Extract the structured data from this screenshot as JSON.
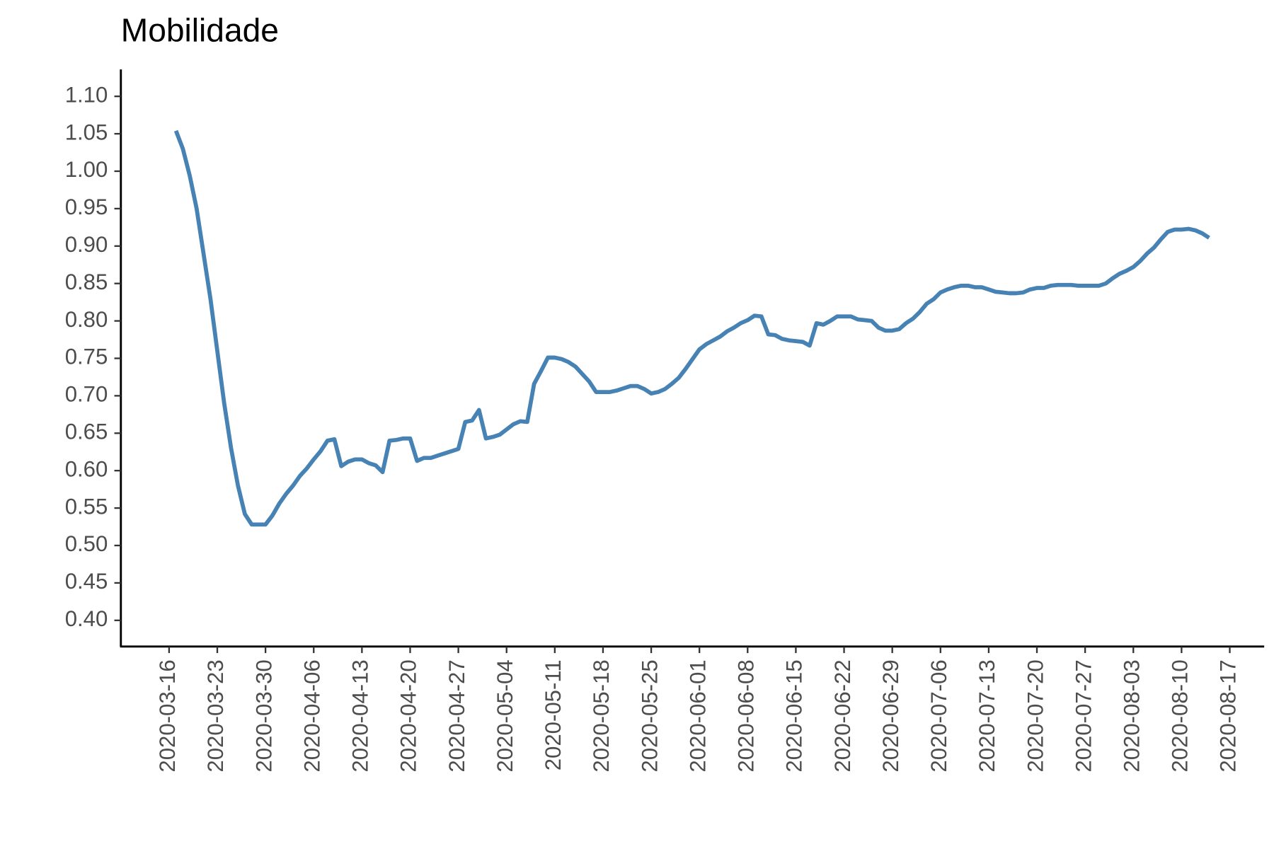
{
  "chart_data": {
    "type": "line",
    "title": "Mobilidade",
    "x": [
      "2020-03-17",
      "2020-03-18",
      "2020-03-19",
      "2020-03-20",
      "2020-03-21",
      "2020-03-22",
      "2020-03-23",
      "2020-03-24",
      "2020-03-25",
      "2020-03-26",
      "2020-03-27",
      "2020-03-28",
      "2020-03-29",
      "2020-03-30",
      "2020-03-31",
      "2020-04-01",
      "2020-04-02",
      "2020-04-03",
      "2020-04-04",
      "2020-04-05",
      "2020-04-06",
      "2020-04-07",
      "2020-04-08",
      "2020-04-09",
      "2020-04-10",
      "2020-04-11",
      "2020-04-12",
      "2020-04-13",
      "2020-04-14",
      "2020-04-15",
      "2020-04-16",
      "2020-04-17",
      "2020-04-18",
      "2020-04-19",
      "2020-04-20",
      "2020-04-21",
      "2020-04-22",
      "2020-04-23",
      "2020-04-24",
      "2020-04-25",
      "2020-04-26",
      "2020-04-27",
      "2020-04-28",
      "2020-04-29",
      "2020-04-30",
      "2020-05-01",
      "2020-05-02",
      "2020-05-03",
      "2020-05-04",
      "2020-05-05",
      "2020-05-06",
      "2020-05-07",
      "2020-05-08",
      "2020-05-09",
      "2020-05-10",
      "2020-05-11",
      "2020-05-12",
      "2020-05-13",
      "2020-05-14",
      "2020-05-15",
      "2020-05-16",
      "2020-05-17",
      "2020-05-18",
      "2020-05-19",
      "2020-05-20",
      "2020-05-21",
      "2020-05-22",
      "2020-05-23",
      "2020-05-24",
      "2020-05-25",
      "2020-05-26",
      "2020-05-27",
      "2020-05-28",
      "2020-05-29",
      "2020-05-30",
      "2020-05-31",
      "2020-06-01",
      "2020-06-02",
      "2020-06-03",
      "2020-06-04",
      "2020-06-05",
      "2020-06-06",
      "2020-06-07",
      "2020-06-08",
      "2020-06-09",
      "2020-06-10",
      "2020-06-11",
      "2020-06-12",
      "2020-06-13",
      "2020-06-14",
      "2020-06-15",
      "2020-06-16",
      "2020-06-17",
      "2020-06-18",
      "2020-06-19",
      "2020-06-20",
      "2020-06-21",
      "2020-06-22",
      "2020-06-23",
      "2020-06-24",
      "2020-06-25",
      "2020-06-26",
      "2020-06-27",
      "2020-06-28",
      "2020-06-29",
      "2020-06-30",
      "2020-07-01",
      "2020-07-02",
      "2020-07-03",
      "2020-07-04",
      "2020-07-05",
      "2020-07-06",
      "2020-07-07",
      "2020-07-08",
      "2020-07-09",
      "2020-07-10",
      "2020-07-11",
      "2020-07-12",
      "2020-07-13",
      "2020-07-14",
      "2020-07-15",
      "2020-07-16",
      "2020-07-17",
      "2020-07-18",
      "2020-07-19",
      "2020-07-20",
      "2020-07-21",
      "2020-07-22",
      "2020-07-23",
      "2020-07-24",
      "2020-07-25",
      "2020-07-26",
      "2020-07-27",
      "2020-07-28",
      "2020-07-29",
      "2020-07-30",
      "2020-07-31",
      "2020-08-01",
      "2020-08-02",
      "2020-08-03",
      "2020-08-04",
      "2020-08-05",
      "2020-08-06",
      "2020-08-07",
      "2020-08-08",
      "2020-08-09",
      "2020-08-10",
      "2020-08-11",
      "2020-08-12",
      "2020-08-13",
      "2020-08-14"
    ],
    "series": [
      {
        "color": "#4682b4",
        "values": [
          1.054,
          1.03,
          0.994,
          0.95,
          0.89,
          0.83,
          0.76,
          0.69,
          0.63,
          0.58,
          0.542,
          0.528,
          0.528,
          0.528,
          0.54,
          0.556,
          0.569,
          0.58,
          0.593,
          0.603,
          0.615,
          0.626,
          0.64,
          0.642,
          0.606,
          0.612,
          0.615,
          0.615,
          0.61,
          0.607,
          0.598,
          0.64,
          0.641,
          0.643,
          0.643,
          0.613,
          0.617,
          0.617,
          0.62,
          0.623,
          0.626,
          0.629,
          0.665,
          0.667,
          0.681,
          0.643,
          0.645,
          0.648,
          0.655,
          0.662,
          0.666,
          0.665,
          0.716,
          0.733,
          0.751,
          0.751,
          0.749,
          0.745,
          0.739,
          0.729,
          0.719,
          0.705,
          0.705,
          0.705,
          0.707,
          0.71,
          0.713,
          0.713,
          0.709,
          0.703,
          0.705,
          0.709,
          0.716,
          0.724,
          0.736,
          0.749,
          0.762,
          0.769,
          0.774,
          0.779,
          0.786,
          0.791,
          0.797,
          0.801,
          0.807,
          0.806,
          0.782,
          0.781,
          0.776,
          0.774,
          0.773,
          0.772,
          0.767,
          0.797,
          0.795,
          0.8,
          0.806,
          0.806,
          0.806,
          0.802,
          0.801,
          0.8,
          0.791,
          0.787,
          0.787,
          0.789,
          0.797,
          0.803,
          0.812,
          0.823,
          0.829,
          0.838,
          0.842,
          0.845,
          0.847,
          0.847,
          0.845,
          0.845,
          0.842,
          0.839,
          0.838,
          0.837,
          0.837,
          0.838,
          0.842,
          0.844,
          0.844,
          0.847,
          0.848,
          0.848,
          0.848,
          0.847,
          0.847,
          0.847,
          0.847,
          0.85,
          0.857,
          0.863,
          0.867,
          0.872,
          0.88,
          0.89,
          0.898,
          0.909,
          0.919,
          0.922,
          0.922,
          0.923,
          0.921,
          0.917,
          0.911
        ]
      }
    ],
    "xlim": [
      "2020-03-09",
      "2020-08-22"
    ],
    "xticks": [
      "2020-03-16",
      "2020-03-23",
      "2020-03-30",
      "2020-04-06",
      "2020-04-13",
      "2020-04-20",
      "2020-04-27",
      "2020-05-04",
      "2020-05-11",
      "2020-05-18",
      "2020-05-25",
      "2020-06-01",
      "2020-06-08",
      "2020-06-15",
      "2020-06-22",
      "2020-06-29",
      "2020-07-06",
      "2020-07-13",
      "2020-07-20",
      "2020-07-27",
      "2020-08-03",
      "2020-08-10",
      "2020-08-17"
    ],
    "ylim": [
      0.365,
      1.136
    ],
    "yticks": [
      {
        "value": 0.4,
        "label": "0.40"
      },
      {
        "value": 0.45,
        "label": "0.45"
      },
      {
        "value": 0.5,
        "label": "0.50"
      },
      {
        "value": 0.55,
        "label": "0.55"
      },
      {
        "value": 0.6,
        "label": "0.60"
      },
      {
        "value": 0.65,
        "label": "0.65"
      },
      {
        "value": 0.7,
        "label": "0.70"
      },
      {
        "value": 0.75,
        "label": "0.75"
      },
      {
        "value": 0.8,
        "label": "0.80"
      },
      {
        "value": 0.85,
        "label": "0.85"
      },
      {
        "value": 0.9,
        "label": "0.90"
      },
      {
        "value": 0.95,
        "label": "0.95"
      },
      {
        "value": 1.0,
        "label": "1.00"
      },
      {
        "value": 1.05,
        "label": "1.05"
      },
      {
        "value": 1.1,
        "label": "1.10"
      }
    ],
    "grid": false
  }
}
